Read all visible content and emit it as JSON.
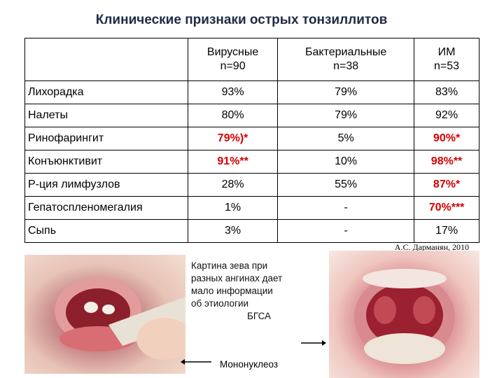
{
  "title": "Клинические признаки острых тонзиллитов",
  "table": {
    "headers": [
      {
        "line1": "Вирусные",
        "line2": "n=90"
      },
      {
        "line1": "Бактериальные",
        "line2": "n=38"
      },
      {
        "line1": "ИМ",
        "line2": "n=53"
      }
    ],
    "rows": [
      {
        "label": "Лихорадка",
        "cells": [
          {
            "v": "93%",
            "red": false
          },
          {
            "v": "79%",
            "red": false
          },
          {
            "v": "83%",
            "red": false
          }
        ]
      },
      {
        "label": "Налеты",
        "cells": [
          {
            "v": "80%",
            "red": false
          },
          {
            "v": "79%",
            "red": false
          },
          {
            "v": "92%",
            "red": false
          }
        ]
      },
      {
        "label": "Ринофарингит",
        "cells": [
          {
            "v": "79%)*",
            "red": true
          },
          {
            "v": "5%",
            "red": false
          },
          {
            "v": "90%*",
            "red": true
          }
        ]
      },
      {
        "label": "Конъюнктивит",
        "cells": [
          {
            "v": "91%**",
            "red": true
          },
          {
            "v": "10%",
            "red": false
          },
          {
            "v": "98%**",
            "red": true
          }
        ]
      },
      {
        "label": "Р-ция лимфузлов",
        "cells": [
          {
            "v": "28%",
            "red": false
          },
          {
            "v": "55%",
            "red": false
          },
          {
            "v": "87%*",
            "red": true
          }
        ]
      },
      {
        "label": "Гепатоспленомегалия",
        "cells": [
          {
            "v": "1%",
            "red": false
          },
          {
            "v": "-",
            "red": false
          },
          {
            "v": "70%***",
            "red": true
          }
        ]
      },
      {
        "label": "Сыпь",
        "cells": [
          {
            "v": "3%",
            "red": false
          },
          {
            "v": "-",
            "red": false
          },
          {
            "v": "17%",
            "red": false
          }
        ]
      }
    ]
  },
  "credit": "А.С. Дарманян, 2010",
  "caption": {
    "lines": [
      "Картина зева при",
      "разных ангинах дает",
      "мало информации",
      "об этиологии"
    ],
    "sub": "БГСА"
  },
  "mono_label": "Мононуклеоз",
  "colors": {
    "accent_red": "#d40000",
    "title": "#1f2a44"
  }
}
